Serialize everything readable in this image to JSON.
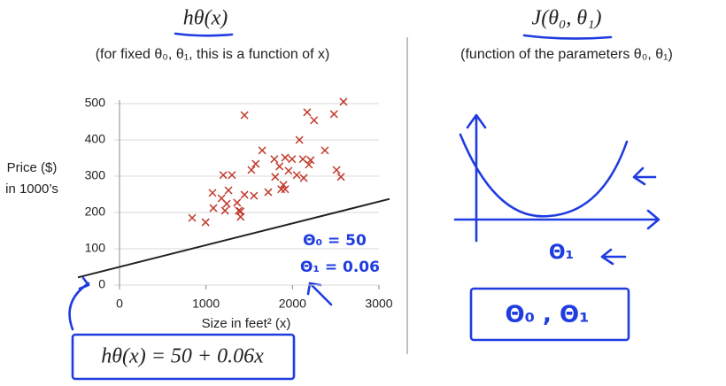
{
  "chart_data": {
    "type": "scatter",
    "ylabel_lines": [
      "Price ($)",
      "in 1000’s"
    ],
    "xlabel": "Size in feet² (x)",
    "x": [
      840,
      995,
      1075,
      1200,
      1300,
      1180,
      1240,
      1260,
      1220,
      1400,
      1380,
      1445,
      1555,
      1360,
      1400,
      1445,
      1525,
      1575,
      1650,
      1720,
      1790,
      1800,
      1850,
      1870,
      1915,
      1955,
      1995,
      1915,
      2050,
      2080,
      2120,
      2190,
      2210,
      2130,
      2250,
      2170,
      2375,
      2510,
      2560,
      2480,
      2590,
      1895,
      1085
    ],
    "values": [
      185,
      173,
      254,
      303,
      303,
      239,
      224,
      261,
      205,
      188,
      205,
      249,
      246,
      227,
      203,
      468,
      317,
      334,
      371,
      256,
      347,
      298,
      327,
      264,
      264,
      315,
      347,
      351,
      303,
      400,
      347,
      332,
      344,
      295,
      454,
      476,
      371,
      317,
      298,
      471,
      505,
      276,
      212
    ],
    "color": "#c0392b",
    "xlim": [
      0,
      3000
    ],
    "xticks": [
      0,
      1000,
      2000,
      3000
    ],
    "ylim": [
      0,
      500
    ],
    "yticks": [
      0,
      100,
      200,
      300,
      400,
      500
    ],
    "grid": true,
    "theta0": 50,
    "theta1": 0.06,
    "theta0_label": "Θ₀ = 50",
    "theta1_label": "Θ₁ = 0.06"
  },
  "left": {
    "title": "hθ(x)",
    "subtitle": "(for fixed θ₀, θ₁, this is a function of x)",
    "formula": "hθ(x) = 50 + 0.06x"
  },
  "right": {
    "title": "J(θ₀, θ₁)",
    "subtitle": "(function of the parameters θ₀, θ₁)",
    "axis_label": "Θ₁",
    "box_label": "Θ₀ , Θ₁"
  }
}
